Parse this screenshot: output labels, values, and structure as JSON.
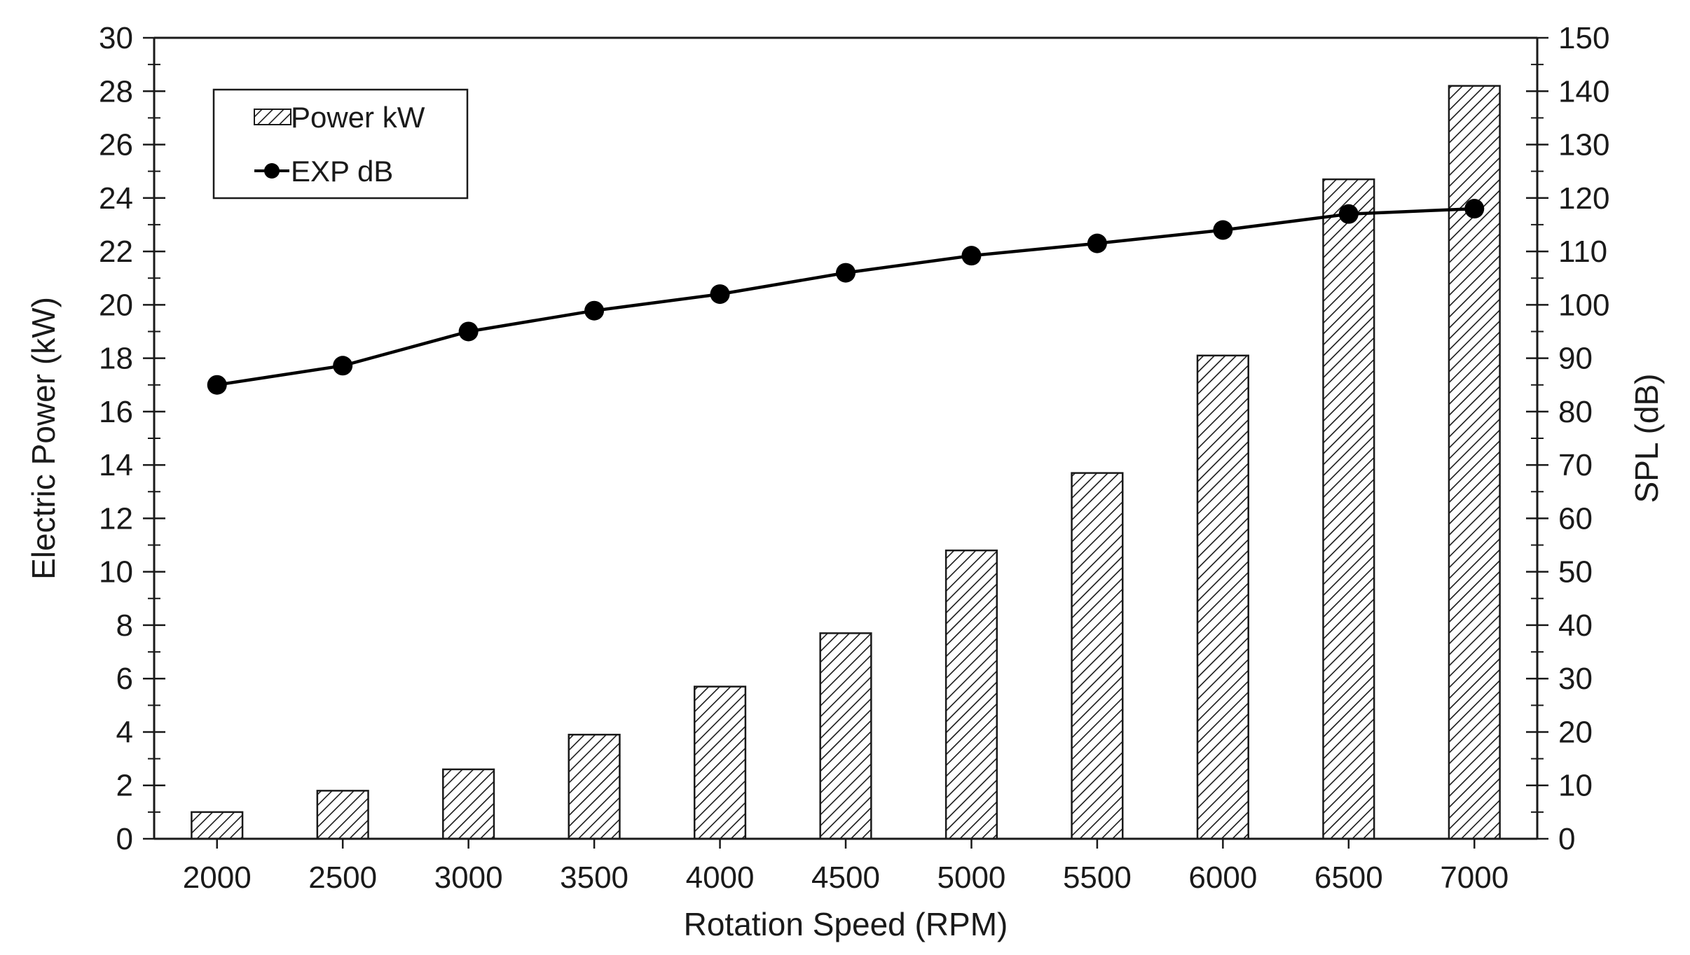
{
  "chart_data": {
    "type": "bar",
    "categories": [
      "2000",
      "2500",
      "3000",
      "3500",
      "4000",
      "4500",
      "5000",
      "5500",
      "6000",
      "6500",
      "7000"
    ],
    "series": [
      {
        "name": "Power kW",
        "type": "bar",
        "axis": "left",
        "pattern": "diagonal-hatch",
        "values": [
          1.0,
          1.8,
          2.6,
          3.9,
          5.7,
          7.7,
          10.8,
          13.7,
          18.1,
          24.7,
          28.2
        ]
      },
      {
        "name": "EXP dB",
        "type": "line",
        "axis": "right",
        "marker": "circle",
        "values": [
          85.0,
          88.6,
          95.0,
          98.9,
          102.0,
          106.0,
          109.2,
          111.5,
          114.0,
          117.0,
          118.0
        ]
      }
    ],
    "xlabel": "Rotation Speed (RPM)",
    "ylabel": "Electric Power (kW)",
    "y2label": "SPL (dB)",
    "ylim": [
      0,
      30
    ],
    "y2lim": [
      0,
      150
    ],
    "yticks": [
      "0",
      "2",
      "4",
      "6",
      "8",
      "10",
      "12",
      "14",
      "16",
      "18",
      "20",
      "22",
      "24",
      "26",
      "28",
      "30"
    ],
    "y2ticks": [
      "0",
      "10",
      "20",
      "30",
      "40",
      "50",
      "60",
      "70",
      "80",
      "90",
      "100",
      "110",
      "120",
      "130",
      "140",
      "150"
    ],
    "grid": false,
    "legend_position": "top-left",
    "colors": {
      "bar_fill": "#ffffff",
      "bar_stroke": "#1a1a1a",
      "line": "#000000",
      "marker": "#000000",
      "axis": "#1a1a1a"
    }
  }
}
